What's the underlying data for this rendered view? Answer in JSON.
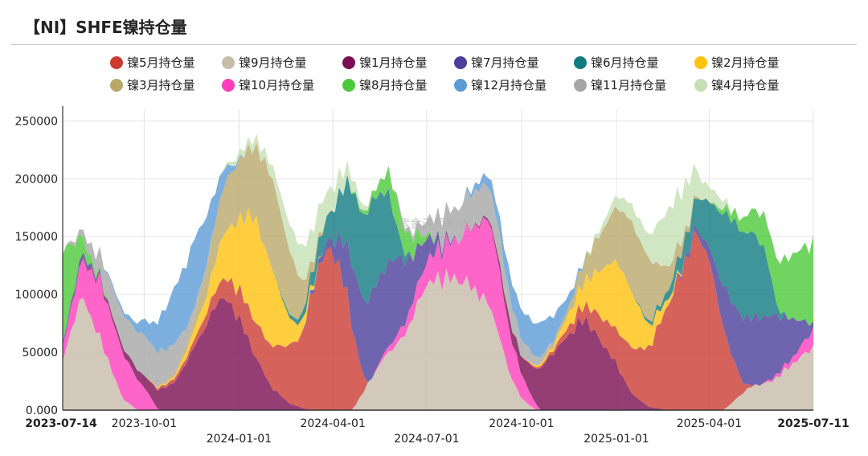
{
  "title": "【NI】SHFE镍持仓量",
  "watermark": "紫金天风期货",
  "chart_data": {
    "type": "area",
    "stacked": true,
    "title": "【NI】SHFE镍持仓量",
    "ylim": [
      0,
      260000
    ],
    "y_ticks": [
      0,
      50000,
      100000,
      150000,
      200000,
      250000
    ],
    "y_tick_labels": [
      "0.000",
      "50000",
      "100000",
      "150000",
      "200000",
      "250000"
    ],
    "x_range": [
      "2023-07-14",
      "2025-07-11"
    ],
    "x_ticks": [
      {
        "date": "2023-07-14",
        "label": "2023-07-14",
        "row": 1,
        "bold": true
      },
      {
        "date": "2023-10-01",
        "label": "2023-10-01",
        "row": 1,
        "bold": false
      },
      {
        "date": "2024-01-01",
        "label": "2024-01-01",
        "row": 2,
        "bold": false
      },
      {
        "date": "2024-04-01",
        "label": "2024-04-01",
        "row": 1,
        "bold": false
      },
      {
        "date": "2024-07-01",
        "label": "2024-07-01",
        "row": 2,
        "bold": false
      },
      {
        "date": "2024-10-01",
        "label": "2024-10-01",
        "row": 1,
        "bold": false
      },
      {
        "date": "2025-01-01",
        "label": "2025-01-01",
        "row": 2,
        "bold": false
      },
      {
        "date": "2025-04-01",
        "label": "2025-04-01",
        "row": 1,
        "bold": false
      },
      {
        "date": "2025-07-11",
        "label": "2025-07-11",
        "row": 1,
        "bold": true
      }
    ],
    "grid": true,
    "legend_position": "top",
    "legend": [
      {
        "name": "镍5月持仓量",
        "color": "#cc3b33"
      },
      {
        "name": "镍9月持仓量",
        "color": "#c8bcaa"
      },
      {
        "name": "镍1月持仓量",
        "color": "#7a0e52"
      },
      {
        "name": "镍7月持仓量",
        "color": "#4b3e9a"
      },
      {
        "name": "镍6月持仓量",
        "color": "#0f7b80"
      },
      {
        "name": "镍2月持仓量",
        "color": "#ffc20e"
      },
      {
        "name": "镍3月持仓量",
        "color": "#b9a76a"
      },
      {
        "name": "镍10月持仓量",
        "color": "#ff3dbb"
      },
      {
        "name": "镍8月持仓量",
        "color": "#4cc93a"
      },
      {
        "name": "镍12月持仓量",
        "color": "#5b9bd5"
      },
      {
        "name": "镍11月持仓量",
        "color": "#a6a6a6"
      },
      {
        "name": "镍4月持仓量",
        "color": "#c6e0b4"
      }
    ],
    "series": [
      {
        "name": "镍9月持仓量",
        "color": "#c8bcaa",
        "points": [
          [
            "2023-07-14",
            42000
          ],
          [
            "2023-08-01",
            100000
          ],
          [
            "2023-08-20",
            60000
          ],
          [
            "2023-09-10",
            10000
          ],
          [
            "2023-09-25",
            0
          ],
          [
            "2024-04-20",
            0
          ],
          [
            "2024-05-20",
            45000
          ],
          [
            "2024-06-10",
            65000
          ],
          [
            "2024-07-01",
            110000
          ],
          [
            "2024-07-20",
            115000
          ],
          [
            "2024-08-10",
            110000
          ],
          [
            "2024-09-01",
            90000
          ],
          [
            "2024-09-20",
            30000
          ],
          [
            "2024-10-01",
            10000
          ],
          [
            "2024-10-15",
            0
          ],
          [
            "2025-04-15",
            0
          ],
          [
            "2025-05-10",
            20000
          ],
          [
            "2025-06-01",
            25000
          ],
          [
            "2025-07-11",
            55000
          ]
        ]
      },
      {
        "name": "镍10月持仓量",
        "color": "#ff3dbb",
        "points": [
          [
            "2023-07-14",
            12000
          ],
          [
            "2023-08-01",
            30000
          ],
          [
            "2023-08-20",
            50000
          ],
          [
            "2023-09-10",
            40000
          ],
          [
            "2023-10-01",
            20000
          ],
          [
            "2023-10-15",
            0
          ],
          [
            "2024-05-10",
            0
          ],
          [
            "2024-06-10",
            10000
          ],
          [
            "2024-07-01",
            20000
          ],
          [
            "2024-08-01",
            35000
          ],
          [
            "2024-09-01",
            75000
          ],
          [
            "2024-09-20",
            35000
          ],
          [
            "2024-10-10",
            10000
          ],
          [
            "2024-10-20",
            0
          ],
          [
            "2025-05-20",
            0
          ],
          [
            "2025-06-20",
            5000
          ],
          [
            "2025-07-11",
            15000
          ]
        ]
      },
      {
        "name": "镍1月持仓量",
        "color": "#7a0e52",
        "points": [
          [
            "2023-07-14",
            0
          ],
          [
            "2023-08-20",
            2000
          ],
          [
            "2023-09-10",
            5000
          ],
          [
            "2023-10-01",
            10000
          ],
          [
            "2023-11-01",
            25000
          ],
          [
            "2023-12-01",
            75000
          ],
          [
            "2023-12-15",
            100000
          ],
          [
            "2024-01-01",
            80000
          ],
          [
            "2024-01-15",
            50000
          ],
          [
            "2024-02-01",
            20000
          ],
          [
            "2024-02-20",
            5000
          ],
          [
            "2024-03-10",
            0
          ],
          [
            "2024-08-01",
            0
          ],
          [
            "2024-09-01",
            2000
          ],
          [
            "2024-10-01",
            15000
          ],
          [
            "2024-11-01",
            50000
          ],
          [
            "2024-12-01",
            80000
          ],
          [
            "2025-01-01",
            40000
          ],
          [
            "2025-01-15",
            15000
          ],
          [
            "2025-02-01",
            3000
          ],
          [
            "2025-02-20",
            0
          ],
          [
            "2025-07-11",
            0
          ]
        ]
      },
      {
        "name": "镍5月持仓量",
        "color": "#cc3b33",
        "points": [
          [
            "2023-07-14",
            0
          ],
          [
            "2023-10-01",
            0
          ],
          [
            "2023-11-15",
            5000
          ],
          [
            "2023-12-15",
            15000
          ],
          [
            "2024-01-01",
            25000
          ],
          [
            "2024-02-01",
            35000
          ],
          [
            "2024-03-01",
            60000
          ],
          [
            "2024-03-20",
            130000
          ],
          [
            "2024-04-01",
            140000
          ],
          [
            "2024-04-15",
            100000
          ],
          [
            "2024-04-28",
            25000
          ],
          [
            "2024-05-05",
            0
          ],
          [
            "2024-10-01",
            0
          ],
          [
            "2024-11-01",
            3000
          ],
          [
            "2024-12-01",
            12000
          ],
          [
            "2025-01-01",
            30000
          ],
          [
            "2025-02-01",
            50000
          ],
          [
            "2025-03-01",
            110000
          ],
          [
            "2025-03-20",
            155000
          ],
          [
            "2025-04-01",
            130000
          ],
          [
            "2025-04-20",
            50000
          ],
          [
            "2025-05-05",
            5000
          ],
          [
            "2025-05-15",
            0
          ],
          [
            "2025-07-11",
            0
          ]
        ]
      },
      {
        "name": "镍7月持仓量",
        "color": "#4b3e9a",
        "points": [
          [
            "2023-07-14",
            3000
          ],
          [
            "2023-08-01",
            5000
          ],
          [
            "2023-08-15",
            2000
          ],
          [
            "2023-09-01",
            0
          ],
          [
            "2024-03-01",
            0
          ],
          [
            "2024-03-20",
            5000
          ],
          [
            "2024-04-01",
            10000
          ],
          [
            "2024-04-20",
            55000
          ],
          [
            "2024-05-10",
            75000
          ],
          [
            "2024-06-01",
            70000
          ],
          [
            "2024-06-20",
            35000
          ],
          [
            "2024-07-01",
            20000
          ],
          [
            "2024-07-15",
            5000
          ],
          [
            "2024-08-01",
            0
          ],
          [
            "2025-02-20",
            0
          ],
          [
            "2025-03-20",
            5000
          ],
          [
            "2025-04-01",
            10000
          ],
          [
            "2025-04-20",
            45000
          ],
          [
            "2025-05-10",
            60000
          ],
          [
            "2025-06-01",
            55000
          ],
          [
            "2025-06-20",
            35000
          ],
          [
            "2025-07-11",
            5000
          ]
        ]
      },
      {
        "name": "镍2月持仓量",
        "color": "#ffc20e",
        "points": [
          [
            "2023-07-14",
            0
          ],
          [
            "2023-10-01",
            0
          ],
          [
            "2023-11-01",
            2000
          ],
          [
            "2023-12-01",
            15000
          ],
          [
            "2024-01-01",
            60000
          ],
          [
            "2024-01-15",
            90000
          ],
          [
            "2024-02-01",
            70000
          ],
          [
            "2024-02-20",
            20000
          ],
          [
            "2024-03-10",
            5000
          ],
          [
            "2024-03-20",
            0
          ],
          [
            "2024-10-01",
            0
          ],
          [
            "2024-11-01",
            3000
          ],
          [
            "2024-12-01",
            20000
          ],
          [
            "2025-01-01",
            60000
          ],
          [
            "2025-01-15",
            50000
          ],
          [
            "2025-02-01",
            20000
          ],
          [
            "2025-02-20",
            5000
          ],
          [
            "2025-03-10",
            0
          ],
          [
            "2025-07-11",
            0
          ]
        ]
      },
      {
        "name": "镍6月持仓量",
        "color": "#0f7b80",
        "points": [
          [
            "2023-07-14",
            0
          ],
          [
            "2023-10-01",
            0
          ],
          [
            "2024-02-01",
            0
          ],
          [
            "2024-03-01",
            5000
          ],
          [
            "2024-04-01",
            25000
          ],
          [
            "2024-04-20",
            65000
          ],
          [
            "2024-05-10",
            80000
          ],
          [
            "2024-05-25",
            60000
          ],
          [
            "2024-06-05",
            15000
          ],
          [
            "2024-06-15",
            0
          ],
          [
            "2025-01-15",
            0
          ],
          [
            "2025-02-15",
            5000
          ],
          [
            "2025-03-15",
            20000
          ],
          [
            "2025-04-01",
            40000
          ],
          [
            "2025-04-20",
            70000
          ],
          [
            "2025-05-10",
            75000
          ],
          [
            "2025-05-25",
            60000
          ],
          [
            "2025-06-05",
            10000
          ],
          [
            "2025-06-15",
            0
          ],
          [
            "2025-07-11",
            0
          ]
        ]
      },
      {
        "name": "镍8月持仓量",
        "color": "#4cc93a",
        "points": [
          [
            "2023-07-14",
            80000
          ],
          [
            "2023-08-01",
            15000
          ],
          [
            "2023-08-15",
            3000
          ],
          [
            "2023-09-01",
            0
          ],
          [
            "2024-04-15",
            0
          ],
          [
            "2024-05-10",
            5000
          ],
          [
            "2024-06-01",
            25000
          ],
          [
            "2024-06-20",
            15000
          ],
          [
            "2024-07-01",
            3000
          ],
          [
            "2024-07-15",
            0
          ],
          [
            "2025-04-01",
            0
          ],
          [
            "2025-05-01",
            10000
          ],
          [
            "2025-06-01",
            35000
          ],
          [
            "2025-06-20",
            55000
          ],
          [
            "2025-07-11",
            70000
          ]
        ]
      },
      {
        "name": "镍3月持仓量",
        "color": "#b9a76a",
        "points": [
          [
            "2023-07-14",
            0
          ],
          [
            "2023-10-15",
            0
          ],
          [
            "2023-11-15",
            5000
          ],
          [
            "2023-12-15",
            40000
          ],
          [
            "2024-01-15",
            60000
          ],
          [
            "2024-02-01",
            80000
          ],
          [
            "2024-02-20",
            55000
          ],
          [
            "2024-03-10",
            10000
          ],
          [
            "2024-03-25",
            0
          ],
          [
            "2024-10-15",
            0
          ],
          [
            "2024-11-15",
            5000
          ],
          [
            "2024-12-15",
            30000
          ],
          [
            "2025-01-15",
            60000
          ],
          [
            "2025-02-01",
            55000
          ],
          [
            "2025-02-20",
            20000
          ],
          [
            "2025-03-10",
            5000
          ],
          [
            "2025-03-25",
            0
          ],
          [
            "2025-07-11",
            0
          ]
        ]
      },
      {
        "name": "镍11月持仓量",
        "color": "#a6a6a6",
        "points": [
          [
            "2023-07-14",
            0
          ],
          [
            "2023-08-01",
            5000
          ],
          [
            "2023-09-01",
            25000
          ],
          [
            "2023-10-01",
            35000
          ],
          [
            "2023-11-01",
            25000
          ],
          [
            "2023-11-20",
            8000
          ],
          [
            "2023-12-10",
            0
          ],
          [
            "2024-05-25",
            0
          ],
          [
            "2024-06-20",
            5000
          ],
          [
            "2024-07-20",
            25000
          ],
          [
            "2024-08-20",
            30000
          ],
          [
            "2024-09-10",
            25000
          ],
          [
            "2024-10-01",
            15000
          ],
          [
            "2024-10-20",
            5000
          ],
          [
            "2024-11-10",
            0
          ],
          [
            "2025-07-11",
            0
          ]
        ]
      },
      {
        "name": "镍12月持仓量",
        "color": "#5b9bd5",
        "points": [
          [
            "2023-07-14",
            0
          ],
          [
            "2023-08-15",
            0
          ],
          [
            "2023-09-20",
            5000
          ],
          [
            "2023-10-10",
            20000
          ],
          [
            "2023-11-01",
            50000
          ],
          [
            "2023-11-20",
            60000
          ],
          [
            "2023-12-10",
            25000
          ],
          [
            "2023-12-25",
            5000
          ],
          [
            "2024-01-05",
            0
          ],
          [
            "2024-08-01",
            0
          ],
          [
            "2024-09-01",
            10000
          ],
          [
            "2024-10-01",
            25000
          ],
          [
            "2024-10-20",
            30000
          ],
          [
            "2024-11-10",
            15000
          ],
          [
            "2024-11-25",
            3000
          ],
          [
            "2024-12-05",
            0
          ],
          [
            "2025-07-11",
            0
          ]
        ]
      },
      {
        "name": "镍4月持仓量",
        "color": "#c6e0b4",
        "points": [
          [
            "2023-07-14",
            0
          ],
          [
            "2023-12-10",
            0
          ],
          [
            "2024-01-01",
            5000
          ],
          [
            "2024-02-01",
            10000
          ],
          [
            "2024-03-01",
            30000
          ],
          [
            "2024-03-20",
            25000
          ],
          [
            "2024-04-10",
            15000
          ],
          [
            "2024-05-01",
            5000
          ],
          [
            "2024-05-10",
            0
          ],
          [
            "2024-12-01",
            0
          ],
          [
            "2025-01-01",
            10000
          ],
          [
            "2025-02-01",
            20000
          ],
          [
            "2025-02-20",
            50000
          ],
          [
            "2025-03-10",
            40000
          ],
          [
            "2025-03-25",
            15000
          ],
          [
            "2025-04-10",
            10000
          ],
          [
            "2025-04-25",
            0
          ],
          [
            "2025-07-11",
            0
          ]
        ]
      }
    ]
  }
}
